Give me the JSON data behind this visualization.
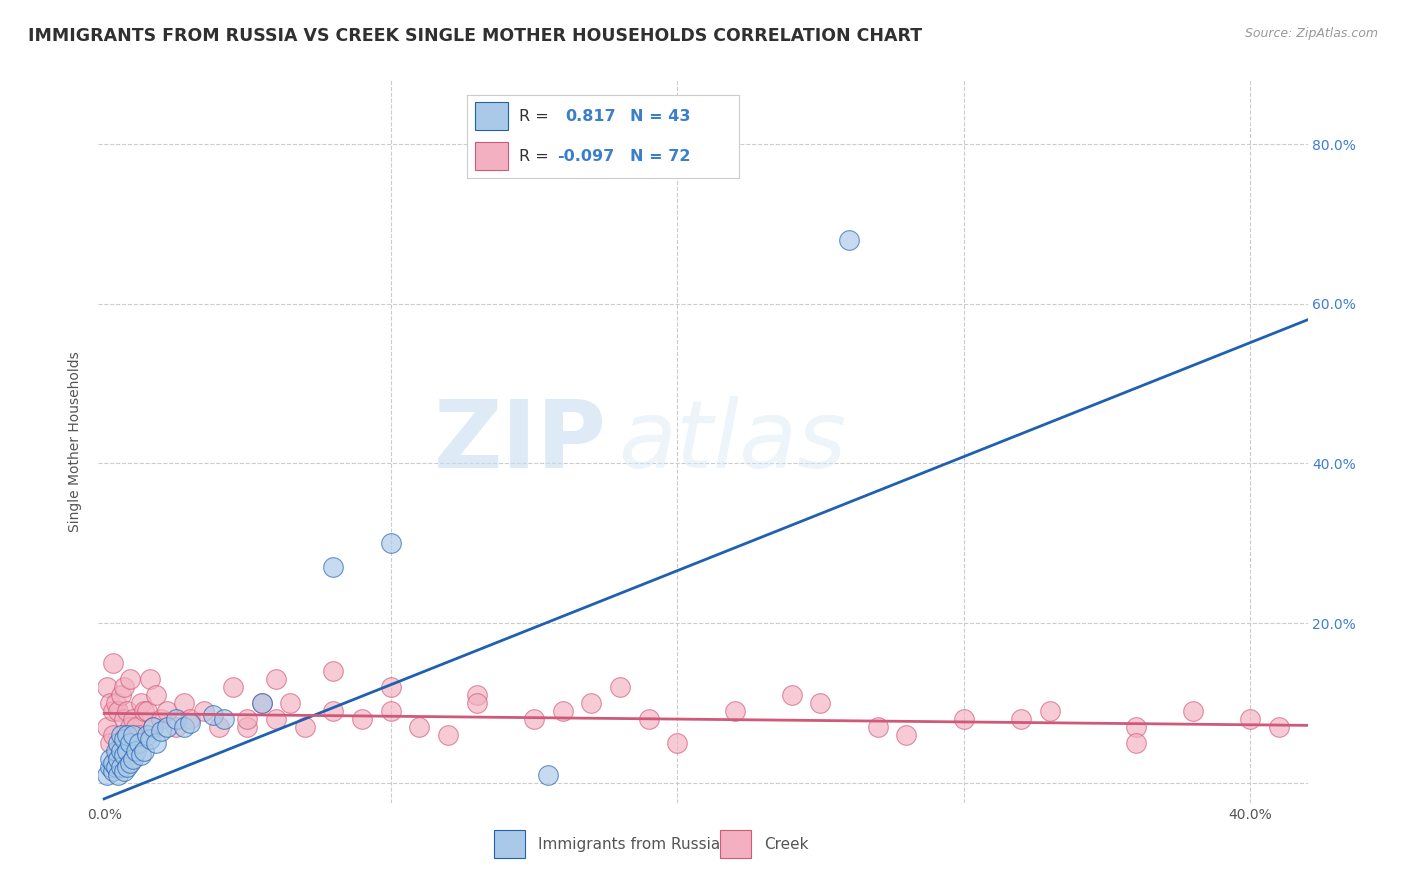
{
  "title": "IMMIGRANTS FROM RUSSIA VS CREEK SINGLE MOTHER HOUSEHOLDS CORRELATION CHART",
  "source": "Source: ZipAtlas.com",
  "ylabel": "Single Mother Households",
  "xlim": [
    -0.002,
    0.42
  ],
  "ylim": [
    -0.025,
    0.88
  ],
  "blue_R": 0.817,
  "blue_N": 43,
  "pink_R": -0.097,
  "pink_N": 72,
  "blue_color": "#aac9e8",
  "pink_color": "#f2b0c0",
  "blue_line_color": "#2060b0",
  "pink_line_color": "#d05878",
  "watermark_zip": "ZIP",
  "watermark_atlas": "atlas",
  "legend_label_blue": "Immigrants from Russia",
  "legend_label_pink": "Creek",
  "blue_scatter_x": [
    0.001,
    0.002,
    0.002,
    0.003,
    0.003,
    0.004,
    0.004,
    0.005,
    0.005,
    0.005,
    0.006,
    0.006,
    0.006,
    0.007,
    0.007,
    0.007,
    0.008,
    0.008,
    0.008,
    0.009,
    0.009,
    0.01,
    0.01,
    0.011,
    0.012,
    0.013,
    0.014,
    0.015,
    0.016,
    0.017,
    0.018,
    0.02,
    0.022,
    0.025,
    0.028,
    0.03,
    0.038,
    0.042,
    0.055,
    0.08,
    0.1,
    0.155,
    0.26
  ],
  "blue_scatter_y": [
    0.01,
    0.02,
    0.03,
    0.015,
    0.025,
    0.02,
    0.04,
    0.03,
    0.01,
    0.05,
    0.04,
    0.02,
    0.06,
    0.035,
    0.015,
    0.055,
    0.04,
    0.02,
    0.06,
    0.05,
    0.025,
    0.06,
    0.03,
    0.04,
    0.05,
    0.035,
    0.04,
    0.06,
    0.055,
    0.07,
    0.05,
    0.065,
    0.07,
    0.08,
    0.07,
    0.075,
    0.085,
    0.08,
    0.1,
    0.27,
    0.3,
    0.01,
    0.68
  ],
  "pink_scatter_x": [
    0.001,
    0.001,
    0.002,
    0.002,
    0.003,
    0.003,
    0.003,
    0.004,
    0.004,
    0.005,
    0.005,
    0.006,
    0.006,
    0.007,
    0.007,
    0.008,
    0.008,
    0.009,
    0.009,
    0.01,
    0.01,
    0.011,
    0.012,
    0.013,
    0.014,
    0.015,
    0.016,
    0.017,
    0.018,
    0.02,
    0.022,
    0.025,
    0.028,
    0.03,
    0.035,
    0.04,
    0.045,
    0.05,
    0.055,
    0.06,
    0.065,
    0.07,
    0.08,
    0.09,
    0.1,
    0.11,
    0.13,
    0.15,
    0.17,
    0.19,
    0.22,
    0.25,
    0.27,
    0.3,
    0.33,
    0.36,
    0.38,
    0.4,
    0.41,
    0.06,
    0.08,
    0.1,
    0.13,
    0.16,
    0.2,
    0.24,
    0.28,
    0.32,
    0.36,
    0.05,
    0.12,
    0.18
  ],
  "pink_scatter_y": [
    0.07,
    0.12,
    0.1,
    0.05,
    0.15,
    0.06,
    0.09,
    0.1,
    0.03,
    0.09,
    0.04,
    0.11,
    0.025,
    0.12,
    0.08,
    0.09,
    0.06,
    0.07,
    0.13,
    0.08,
    0.05,
    0.07,
    0.06,
    0.1,
    0.09,
    0.09,
    0.13,
    0.07,
    0.11,
    0.08,
    0.09,
    0.07,
    0.1,
    0.08,
    0.09,
    0.07,
    0.12,
    0.07,
    0.1,
    0.08,
    0.1,
    0.07,
    0.09,
    0.08,
    0.09,
    0.07,
    0.11,
    0.08,
    0.1,
    0.08,
    0.09,
    0.1,
    0.07,
    0.08,
    0.09,
    0.07,
    0.09,
    0.08,
    0.07,
    0.13,
    0.14,
    0.12,
    0.1,
    0.09,
    0.05,
    0.11,
    0.06,
    0.08,
    0.05,
    0.08,
    0.06,
    0.12
  ],
  "grid_color": "#cccccc",
  "background_color": "#ffffff",
  "title_color": "#303030",
  "title_fontsize": 12.5,
  "axis_label_fontsize": 10,
  "tick_fontsize": 10,
  "ytick_color": "#3b7fcc",
  "xtick_color": "#555555"
}
